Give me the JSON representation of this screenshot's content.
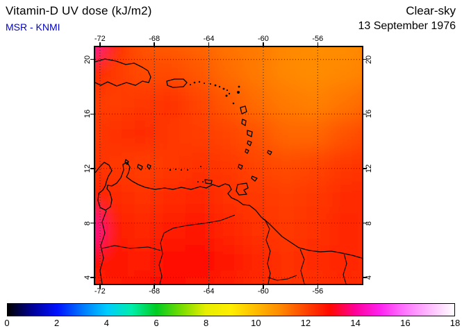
{
  "header": {
    "title": "Vitamin-D UV dose (kJ/m2)",
    "source": "MSR - KNMI",
    "condition": "Clear-sky",
    "date": "13 September 1976"
  },
  "colors": {
    "source_text": "#0000cc",
    "title_text": "#000000",
    "map_dominant": "#ff4400",
    "map_hotspot": "#ff00aa"
  },
  "axes": {
    "lon_ticks": [
      {
        "label": "-72",
        "value": -72
      },
      {
        "label": "-68",
        "value": -68
      },
      {
        "label": "-64",
        "value": -64
      },
      {
        "label": "-60",
        "value": -60
      },
      {
        "label": "-56",
        "value": -56
      }
    ],
    "lat_ticks": [
      {
        "label": "20",
        "value": 20
      },
      {
        "label": "16",
        "value": 16
      },
      {
        "label": "12",
        "value": 12
      },
      {
        "label": "8",
        "value": 8
      },
      {
        "label": "4",
        "value": 4
      }
    ]
  },
  "colorbar": {
    "min": 0,
    "max": 18,
    "ticks": [
      {
        "label": "0",
        "value": 0
      },
      {
        "label": "2",
        "value": 2
      },
      {
        "label": "4",
        "value": 4
      },
      {
        "label": "6",
        "value": 6
      },
      {
        "label": "8",
        "value": 8
      },
      {
        "label": "10",
        "value": 10
      },
      {
        "label": "12",
        "value": 12
      },
      {
        "label": "14",
        "value": 14
      },
      {
        "label": "16",
        "value": 16
      },
      {
        "label": "18",
        "value": 18
      }
    ],
    "stops": [
      [
        0,
        "#000000"
      ],
      [
        1,
        "#000099"
      ],
      [
        2,
        "#0011ff"
      ],
      [
        3,
        "#0077ff"
      ],
      [
        4,
        "#00ccff"
      ],
      [
        5,
        "#00eeaa"
      ],
      [
        6,
        "#00cc22"
      ],
      [
        7,
        "#77dd00"
      ],
      [
        8,
        "#e8ee00"
      ],
      [
        9,
        "#ffee00"
      ],
      [
        10,
        "#ffbb00"
      ],
      [
        11,
        "#ff8800"
      ],
      [
        12,
        "#ff4400"
      ],
      [
        13,
        "#ff0800"
      ],
      [
        14,
        "#ff0099"
      ],
      [
        15,
        "#ff22ee"
      ],
      [
        16,
        "#ff77ff"
      ],
      [
        17,
        "#ffbbff"
      ],
      [
        18,
        "#ffffff"
      ]
    ]
  },
  "chart_data": {
    "type": "heatmap",
    "title": "Vitamin-D UV dose (kJ/m2)",
    "units": "kJ/m2",
    "condition": "Clear-sky",
    "date": "13 September 1976",
    "source": "MSR - KNMI",
    "region": "Caribbean / northern South America",
    "lon_range": [
      -72.35,
      -52.75
    ],
    "lat_range": [
      3.55,
      20.9
    ],
    "colorbar_range": [
      0,
      18
    ],
    "grid_lon": [
      -71.5,
      -69.6,
      -67.7,
      -65.8,
      -63.9,
      -62.0,
      -60.1,
      -58.2,
      -56.3,
      -54.4,
      -52.5
    ],
    "grid_lat": [
      20.5,
      18.4,
      16.3,
      14.2,
      12.1,
      10.0,
      7.9,
      5.8,
      3.7
    ],
    "values": [
      [
        14.3,
        12.6,
        11.8,
        11.6,
        11.5,
        11.3,
        11.2,
        11.0,
        10.9,
        10.9,
        11.0
      ],
      [
        12.8,
        12.2,
        11.9,
        11.9,
        11.7,
        11.4,
        11.2,
        11.0,
        10.9,
        11.0,
        11.1
      ],
      [
        12.2,
        12.1,
        12.2,
        12.3,
        12.0,
        11.7,
        11.4,
        11.2,
        11.1,
        11.3,
        11.5
      ],
      [
        12.1,
        12.3,
        12.4,
        12.2,
        12.1,
        12.0,
        11.8,
        11.5,
        11.5,
        11.8,
        12.0
      ],
      [
        12.4,
        12.2,
        12.1,
        12.2,
        12.3,
        12.2,
        12.0,
        11.9,
        12.0,
        12.2,
        12.3
      ],
      [
        12.7,
        12.4,
        12.3,
        12.4,
        12.5,
        12.3,
        12.2,
        12.1,
        12.2,
        12.4,
        12.4
      ],
      [
        14.1,
        12.7,
        12.5,
        12.7,
        12.8,
        12.5,
        12.3,
        12.2,
        12.3,
        12.5,
        12.4
      ],
      [
        12.9,
        12.8,
        12.7,
        12.9,
        13.0,
        12.8,
        12.5,
        12.3,
        12.4,
        12.5,
        12.4
      ],
      [
        12.5,
        12.7,
        12.9,
        13.0,
        12.8,
        12.6,
        12.4,
        12.3,
        12.3,
        12.4,
        12.3
      ]
    ]
  },
  "map_features": {
    "coastline_paths": [
      "M0,21 L14,17 L30,20 L44,25 L56,23 L68,29 L76,34 L80,43 L77,51 L68,49 L58,55 L45,51 L31,56 L18,50 L8,55 L0,51",
      "M103,49 L114,46 L127,46 L132,51 L127,57 L112,58 L104,55 Z",
      "M209,87 L216,85 L218,93 L211,96 Z",
      "M212,104 L217,106 L216,113 L211,110 Z",
      "M219,120 L226,122 L225,129 L219,126 Z",
      "M220,135 L225,137 L223,142 L219,139 Z",
      "M217,147 L221,149 L219,153 L216,151 Z",
      "M207,169 L212,171 L210,176 L206,173 Z",
      "M249,149 L254,151 L252,155 L248,152 Z",
      "M226,186 L233,189 L230,193 L225,189 Z",
      "M205,198 L218,196 L220,203 L214,206 L218,212 L207,213 L203,207 Z",
      "M158,191 L168,192 L167,197 L159,196 Z",
      "M44,162 L48,165 L46,169 L43,166 Z",
      "M62,169 L68,172 L66,177 L61,173 Z",
      "M76,169 L80,171 L78,176 L75,172 Z",
      "M0,181 L7,172 L13,166 L20,170 L24,178 L19,186 L16,194 L15,199 L11,206 L5,211 L4,221 L7,231 L15,235 L22,230 L24,220 L21,209 L17,204 L18,199 L24,200 L31,196 L37,188 L41,177 L40,169 L46,166 L50,173 L48,181 L45,187 L53,193 L62,198 L72,202 L86,205 L100,203 L112,205 L124,202 L138,205 L151,201 L160,203 L169,198 L178,201 L187,197 L193,199 L196,205 L191,211 L196,217 L205,221 L213,227 L222,228 L231,235 L239,245 L249,253 L259,263 L269,273 L281,281 L293,289 L308,293 L324,295 L340,294 L356,297 L370,300 L384,304"
    ],
    "border_paths": [
      "M16,236 L10,252 L14,268 L8,286 L12,304 L7,322 L10,341",
      "M10,290 L28,286 L50,290 L76,288 L94,293",
      "M201,242 L180,250 L156,254 L132,257 L112,261 L99,268 L94,282 L97,298 L92,314 L96,330 L93,341",
      "M244,248 L251,262 L246,278 L252,294 L248,312 L252,326 L249,341",
      "M295,291 L301,306 L296,322 L301,341",
      "M249,332 L262,336 L277,334 L290,329",
      "M358,297 L362,312 L357,328 L361,341"
    ],
    "island_dots": [
      [
        137,
        54,
        1.1
      ],
      [
        143,
        51,
        1.3
      ],
      [
        150,
        50,
        1.2
      ],
      [
        157,
        52,
        1.0
      ],
      [
        166,
        53,
        1.0
      ],
      [
        173,
        55,
        1.4
      ],
      [
        179,
        57,
        1.2
      ],
      [
        185,
        60,
        1.4
      ],
      [
        190,
        62,
        1.1
      ],
      [
        189,
        70,
        1.5
      ],
      [
        193,
        67,
        1.2
      ],
      [
        199,
        81,
        1.3
      ],
      [
        206,
        65,
        2.0
      ],
      [
        207,
        57,
        1.4
      ],
      [
        108,
        177,
        1.2
      ],
      [
        116,
        176,
        1.0
      ],
      [
        124,
        177,
        1.0
      ],
      [
        133,
        177,
        1.0
      ],
      [
        152,
        172,
        1.0
      ],
      [
        155,
        194,
        1.1
      ],
      [
        148,
        194,
        1.0
      ]
    ]
  }
}
